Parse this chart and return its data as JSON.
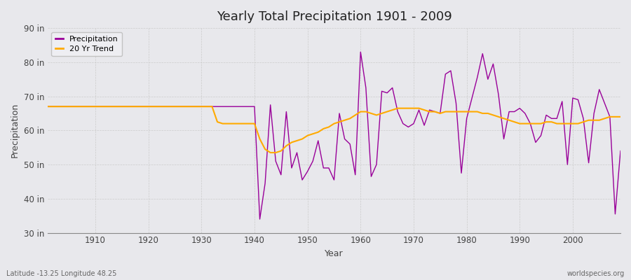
{
  "title": "Yearly Total Precipitation 1901 - 2009",
  "xlabel": "Year",
  "ylabel": "Precipitation",
  "background_color": "#e8e8ec",
  "plot_bg_color": "#e8e8ec",
  "years": [
    1901,
    1902,
    1903,
    1904,
    1905,
    1906,
    1907,
    1908,
    1909,
    1910,
    1911,
    1912,
    1913,
    1914,
    1915,
    1916,
    1917,
    1918,
    1919,
    1920,
    1921,
    1922,
    1923,
    1924,
    1925,
    1926,
    1927,
    1928,
    1929,
    1930,
    1931,
    1932,
    1933,
    1934,
    1935,
    1936,
    1937,
    1938,
    1939,
    1940,
    1941,
    1942,
    1943,
    1944,
    1945,
    1946,
    1947,
    1948,
    1949,
    1950,
    1951,
    1952,
    1953,
    1954,
    1955,
    1956,
    1957,
    1958,
    1959,
    1960,
    1961,
    1962,
    1963,
    1964,
    1965,
    1966,
    1967,
    1968,
    1969,
    1970,
    1971,
    1972,
    1973,
    1974,
    1975,
    1976,
    1977,
    1978,
    1979,
    1980,
    1981,
    1982,
    1983,
    1984,
    1985,
    1986,
    1987,
    1988,
    1989,
    1990,
    1991,
    1992,
    1993,
    1994,
    1995,
    1996,
    1997,
    1998,
    1999,
    2000,
    2001,
    2002,
    2003,
    2004,
    2005,
    2006,
    2007,
    2008,
    2009
  ],
  "precip": [
    67.0,
    67.0,
    67.0,
    67.0,
    67.0,
    67.0,
    67.0,
    67.0,
    67.0,
    67.0,
    67.0,
    67.0,
    67.0,
    67.0,
    67.0,
    67.0,
    67.0,
    67.0,
    67.0,
    67.0,
    67.0,
    67.0,
    67.0,
    67.0,
    67.0,
    67.0,
    67.0,
    67.0,
    67.0,
    67.0,
    67.0,
    67.0,
    67.0,
    67.0,
    67.0,
    67.0,
    67.0,
    67.0,
    67.0,
    67.0,
    34.0,
    44.5,
    67.5,
    51.0,
    47.0,
    65.5,
    49.0,
    53.5,
    45.5,
    48.0,
    51.0,
    57.0,
    49.0,
    49.0,
    45.5,
    65.0,
    57.5,
    56.0,
    47.0,
    83.0,
    72.5,
    46.5,
    50.0,
    71.5,
    71.0,
    72.5,
    65.5,
    62.0,
    61.0,
    62.0,
    66.0,
    61.5,
    66.0,
    65.5,
    65.0,
    76.5,
    77.5,
    68.0,
    47.5,
    63.5,
    69.5,
    75.5,
    82.5,
    75.0,
    79.5,
    70.5,
    57.5,
    65.5,
    65.5,
    66.5,
    65.0,
    62.0,
    56.5,
    58.5,
    64.5,
    63.5,
    63.5,
    68.5,
    50.0,
    69.5,
    69.0,
    63.5,
    50.5,
    65.0,
    72.0,
    68.0,
    64.0,
    35.5,
    54.0
  ],
  "trend": [
    67.0,
    67.0,
    67.0,
    67.0,
    67.0,
    67.0,
    67.0,
    67.0,
    67.0,
    67.0,
    67.0,
    67.0,
    67.0,
    67.0,
    67.0,
    67.0,
    67.0,
    67.0,
    67.0,
    67.0,
    67.0,
    67.0,
    67.0,
    67.0,
    67.0,
    67.0,
    67.0,
    67.0,
    67.0,
    67.0,
    67.0,
    67.0,
    62.5,
    62.0,
    62.0,
    62.0,
    62.0,
    62.0,
    62.0,
    62.0,
    57.5,
    54.5,
    53.5,
    53.5,
    54.0,
    55.5,
    56.5,
    57.0,
    57.5,
    58.5,
    59.0,
    59.5,
    60.5,
    61.0,
    62.0,
    62.5,
    63.0,
    63.5,
    64.5,
    65.5,
    65.5,
    65.0,
    64.5,
    65.0,
    65.5,
    66.0,
    66.5,
    66.5,
    66.5,
    66.5,
    66.5,
    66.0,
    65.5,
    65.5,
    65.0,
    65.5,
    65.5,
    65.5,
    65.5,
    65.5,
    65.5,
    65.5,
    65.0,
    65.0,
    64.5,
    64.0,
    63.5,
    63.0,
    62.5,
    62.0,
    62.0,
    62.0,
    62.0,
    62.0,
    62.5,
    62.5,
    62.0,
    62.0,
    62.0,
    62.0,
    62.0,
    62.5,
    63.0,
    63.0,
    63.0,
    63.5,
    64.0,
    64.0,
    64.0
  ],
  "precip_color": "#990099",
  "trend_color": "#ffaa00",
  "grid_color": "#cccccc",
  "ylim": [
    30,
    90
  ],
  "yticks": [
    30,
    40,
    50,
    60,
    70,
    80,
    90
  ],
  "ytick_labels": [
    "30 in",
    "40 in",
    "50 in",
    "60 in",
    "70 in",
    "80 in",
    "90 in"
  ],
  "xticks": [
    1910,
    1920,
    1930,
    1940,
    1950,
    1960,
    1970,
    1980,
    1990,
    2000
  ],
  "footnote_left": "Latitude -13.25 Longitude 48.25",
  "footnote_right": "worldspecies.org",
  "legend_labels": [
    "Precipitation",
    "20 Yr Trend"
  ]
}
